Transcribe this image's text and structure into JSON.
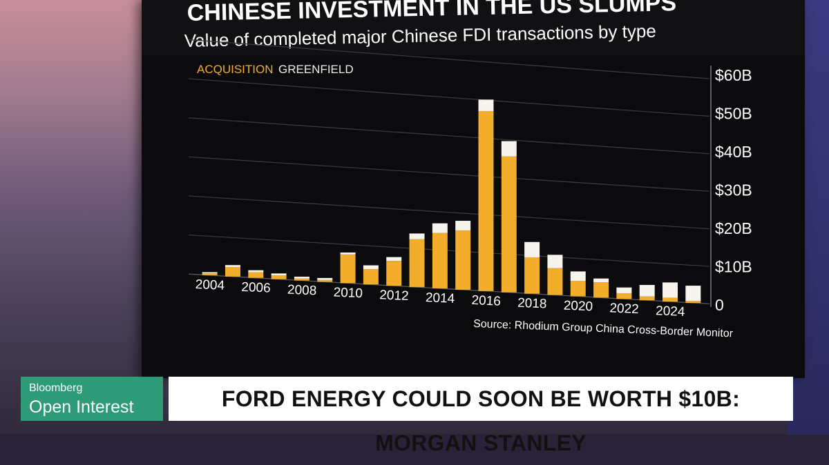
{
  "screen": {
    "title": "CHINESE INVESTMENT IN THE US SLUMPS",
    "subtitle": "Value of completed major Chinese FDI transactions by type",
    "source": "Source: Rhodium Group China Cross-Border Monitor"
  },
  "lower_third": {
    "brand": "Bloomberg",
    "show": "Open Interest",
    "headline": "FORD ENERGY COULD SOON BE WORTH $10B: MORGAN STANLEY"
  },
  "colors": {
    "acquisition": "#f2ae2a",
    "greenfield": "#f7f4ee",
    "brand_green": "#2e9b78"
  },
  "chart_data": {
    "type": "bar",
    "stacked": true,
    "title": "CHINESE INVESTMENT IN THE US SLUMPS",
    "subtitle": "Value of completed major Chinese FDI transactions by type",
    "categories": [
      "2004",
      "2005",
      "2006",
      "2007",
      "2008",
      "2009",
      "2010",
      "2011",
      "2012",
      "2013",
      "2014",
      "2015",
      "2016",
      "2017",
      "2018",
      "2019",
      "2020",
      "2021",
      "2022",
      "2023",
      "2024",
      "2025"
    ],
    "series": [
      {
        "name": "ACQUISITION",
        "values": [
          0.5,
          2.5,
          1.5,
          1.0,
          0.5,
          0.5,
          7.5,
          4.0,
          6.5,
          12.5,
          14.5,
          15.5,
          47.0,
          35.5,
          9.5,
          7.0,
          4.0,
          4.0,
          1.5,
          1.0,
          1.0,
          0.5
        ]
      },
      {
        "name": "GREENFIELD",
        "values": [
          0.3,
          0.5,
          0.5,
          0.5,
          0.5,
          0.5,
          0.5,
          1.0,
          1.0,
          1.5,
          2.5,
          2.5,
          3.0,
          4.0,
          4.0,
          3.5,
          2.5,
          1.0,
          1.5,
          3.0,
          4.0,
          4.0
        ]
      }
    ],
    "x_tick_labels": [
      "2004",
      "2006",
      "2008",
      "2010",
      "2012",
      "2014",
      "2016",
      "2018",
      "2020",
      "2022",
      "2024"
    ],
    "y_tick_labels": [
      "0",
      "$10B",
      "$20B",
      "$30B",
      "$40B",
      "$50B",
      "$60B"
    ],
    "ylim": [
      0,
      60
    ],
    "y_axis_position": "right",
    "legend": "top-left",
    "grid": true,
    "source": "Source: Rhodium Group China Cross-Border Monitor"
  }
}
